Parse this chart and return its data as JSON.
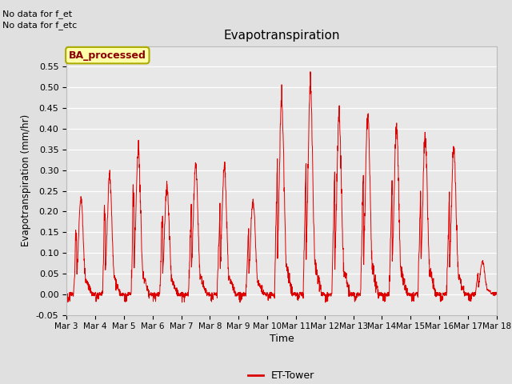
{
  "title": "Evapotranspiration",
  "xlabel": "Time",
  "ylabel": "Evapotranspiration (mm/hr)",
  "ylim": [
    -0.05,
    0.6
  ],
  "yticks": [
    -0.05,
    0.0,
    0.05,
    0.1,
    0.15,
    0.2,
    0.25,
    0.3,
    0.35,
    0.4,
    0.45,
    0.5,
    0.55
  ],
  "line_color": "#dd0000",
  "bg_color": "#e0e0e0",
  "plot_bg_color": "#e8e8e8",
  "annotation_text1": "No data for f_et",
  "annotation_text2": "No data for f_etc",
  "legend_label": "ET-Tower",
  "legend_box_color": "#ffffaa",
  "legend_box_edge": "#aaaa00",
  "legend_text": "BA_processed",
  "xtick_labels": [
    "Mar 3",
    "Mar 4",
    "Mar 5",
    "Mar 6",
    "Mar 7",
    "Mar 8",
    "Mar 9",
    "Mar 10",
    "Mar 11",
    "Mar 12",
    "Mar 13",
    "Mar 14",
    "Mar 15",
    "Mar 16",
    "Mar 17",
    "Mar 18"
  ],
  "day_peaks": [
    0.235,
    0.29,
    0.35,
    0.265,
    0.315,
    0.31,
    0.23,
    0.47,
    0.5,
    0.43,
    0.43,
    0.4,
    0.38,
    0.35,
    0.08
  ],
  "n_days": 15
}
